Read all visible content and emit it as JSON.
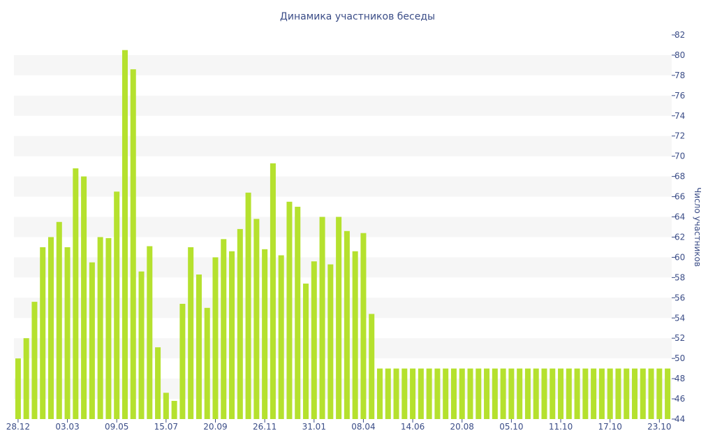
{
  "chart_data": {
    "type": "bar",
    "title": "Динамика участников беседы",
    "ylabel": "Число участников",
    "xlabel": "",
    "ylim": [
      44,
      82
    ],
    "y_ticks": [
      44,
      46,
      48,
      50,
      52,
      54,
      56,
      58,
      60,
      62,
      64,
      66,
      68,
      70,
      72,
      74,
      76,
      78,
      80,
      82
    ],
    "x_tick_labels": [
      "28.12",
      "03.03",
      "09.05",
      "15.07",
      "20.09",
      "26.11",
      "31.01",
      "08.04",
      "14.06",
      "20.08",
      "05.10",
      "11.10",
      "17.10",
      "23.10"
    ],
    "x_tick_positions": [
      0,
      6,
      12,
      18,
      24,
      30,
      36,
      42,
      48,
      54,
      60,
      66,
      72,
      78
    ],
    "y_axis_side": "right",
    "grid": "horizontal bands",
    "bar_color": "#b5e12e",
    "values": [
      50,
      52,
      55.6,
      61,
      62,
      63.5,
      61,
      68.8,
      68,
      59.5,
      62,
      61.9,
      66.5,
      80.5,
      78.6,
      58.6,
      61.1,
      51.1,
      46.6,
      45.8,
      55.4,
      61,
      58.3,
      55,
      60,
      61.8,
      60.6,
      62.8,
      66.4,
      63.8,
      60.8,
      69.3,
      60.2,
      65.5,
      65,
      57.4,
      59.6,
      64,
      59.3,
      64,
      62.6,
      60.6,
      62.4,
      54.4,
      49,
      49,
      49,
      49,
      49,
      49,
      49,
      49,
      49,
      49,
      49,
      49,
      49,
      49,
      49,
      49,
      49,
      49,
      49,
      49,
      49,
      49,
      49,
      49,
      49,
      49,
      49,
      49,
      49,
      49,
      49,
      49,
      49,
      49,
      49,
      49
    ]
  }
}
